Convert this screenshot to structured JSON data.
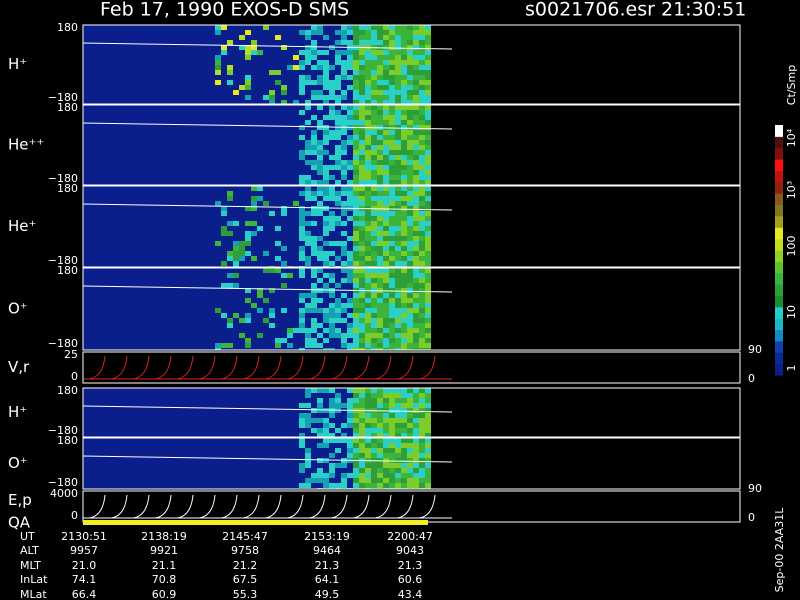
{
  "header": {
    "title": "Feb 17, 1990   EXOS-D SMS",
    "file_time": "s0021706.esr  21:30:51"
  },
  "panels": [
    {
      "label": "H⁺",
      "top": "180",
      "bottom": "−180"
    },
    {
      "label": "He⁺⁺",
      "top": "180",
      "bottom": "−180"
    },
    {
      "label": "He⁺",
      "top": "180",
      "bottom": "−180"
    },
    {
      "label": "O⁺",
      "top": "180",
      "bottom": "−180"
    },
    {
      "label": "V,r",
      "top": "25",
      "bottom": "0",
      "right_top": "90",
      "right_bottom": "0"
    },
    {
      "label": "H⁺",
      "top": "180",
      "bottom": "−180"
    },
    {
      "label": "O⁺",
      "top": "180",
      "bottom": "−180"
    },
    {
      "label": "E,p",
      "label2": "QA",
      "top": "4000",
      "bottom": "0",
      "right_top": "90",
      "right_bottom": "0"
    }
  ],
  "table": {
    "row_labels": [
      "UT",
      "ALT",
      "MLT",
      "InLat",
      "MLat"
    ],
    "columns": [
      [
        "2130:51",
        "9957",
        "21.0",
        "74.1",
        "66.4"
      ],
      [
        "2138:19",
        "9921",
        "21.1",
        "70.8",
        "60.9"
      ],
      [
        "2145:47",
        "9758",
        "21.2",
        "67.5",
        "55.3"
      ],
      [
        "2153:19",
        "9464",
        "21.3",
        "64.1",
        "49.5"
      ],
      [
        "2200:47",
        "9043",
        "21.3",
        "60.6",
        "43.4"
      ]
    ]
  },
  "colorbar": {
    "title": "Ct/Smp",
    "labels": [
      "1",
      "10",
      "100",
      "10³",
      "10⁴"
    ]
  },
  "side_note": "Sep-00 2AA31L"
}
